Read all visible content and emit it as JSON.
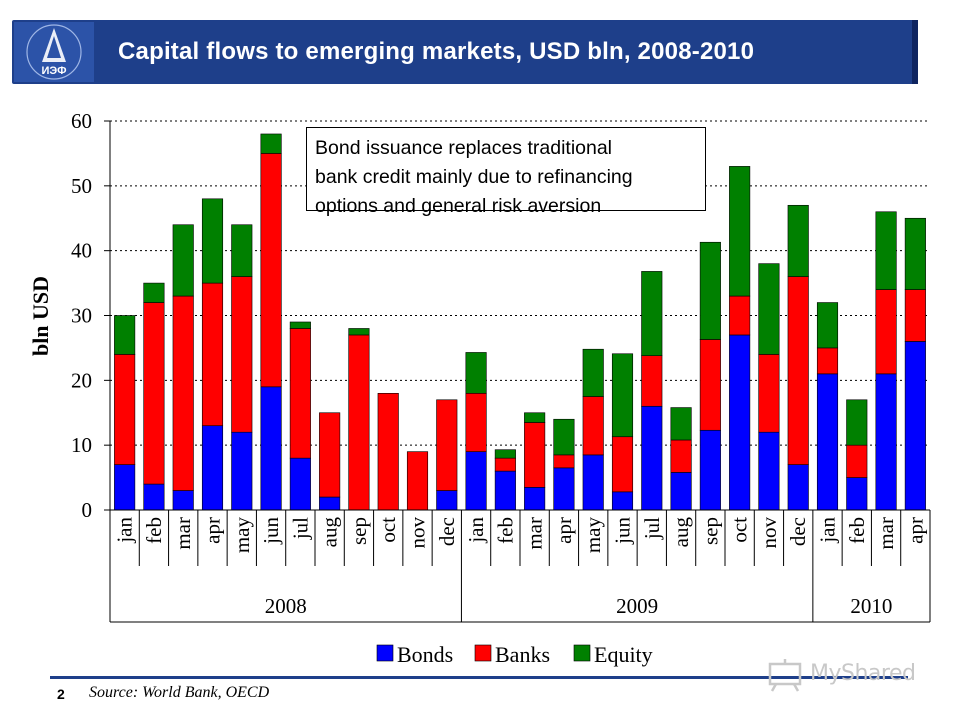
{
  "header": {
    "title": "Capital flows to emerging markets, USD bln, 2008-2010",
    "logo_text": "ИЭФ"
  },
  "annotation": {
    "lines": [
      "Bond issuance replaces traditional",
      "bank credit mainly due to refinancing",
      "options and general risk aversion"
    ]
  },
  "footer": {
    "page_number": "2",
    "source": "Source: World Bank, OECD",
    "watermark": "MyShared"
  },
  "colors": {
    "bonds": "#0000ff",
    "banks": "#ff0000",
    "equity": "#008000",
    "header": "#1e3f8a"
  },
  "chart_data": {
    "type": "bar",
    "stacked": true,
    "title": "Capital flows to emerging markets, USD bln, 2008-2010",
    "ylabel": "bln USD",
    "xlabel": "",
    "ylim": [
      0,
      60
    ],
    "yticks": [
      0,
      10,
      20,
      30,
      40,
      50,
      60
    ],
    "grid": "horizontal dashed",
    "legend_position": "bottom",
    "categories": [
      "jan",
      "feb",
      "mar",
      "apr",
      "may",
      "jun",
      "jul",
      "aug",
      "sep",
      "oct",
      "nov",
      "dec",
      "jan",
      "feb",
      "mar",
      "apr",
      "may",
      "jun",
      "jul",
      "aug",
      "sep",
      "oct",
      "nov",
      "dec",
      "jan",
      "feb",
      "mar",
      "apr"
    ],
    "groups": [
      {
        "label": "2008",
        "count": 12
      },
      {
        "label": "2009",
        "count": 12
      },
      {
        "label": "2010",
        "count": 4
      }
    ],
    "series": [
      {
        "name": "Bonds",
        "values": [
          7,
          4,
          3,
          13,
          12,
          19,
          8,
          2,
          0,
          0,
          0,
          3,
          9,
          6,
          3.5,
          6.5,
          8.5,
          2.8,
          16,
          5.8,
          12.3,
          27,
          12,
          7,
          21,
          5,
          21,
          26
        ]
      },
      {
        "name": "Banks",
        "values": [
          17,
          28,
          30,
          22,
          24,
          36,
          20,
          13,
          27,
          18,
          9,
          14,
          9,
          2,
          10,
          2,
          9,
          8.5,
          7.8,
          5,
          14,
          6,
          12,
          29,
          4,
          5,
          13,
          8
        ]
      },
      {
        "name": "Equity",
        "values": [
          6,
          3,
          11,
          13,
          8,
          3,
          1,
          0,
          1,
          0,
          0,
          0,
          6.3,
          1.3,
          1.5,
          5.5,
          7.3,
          12.8,
          13,
          5,
          15,
          20,
          14,
          11,
          7,
          7,
          12,
          11
        ]
      }
    ]
  }
}
